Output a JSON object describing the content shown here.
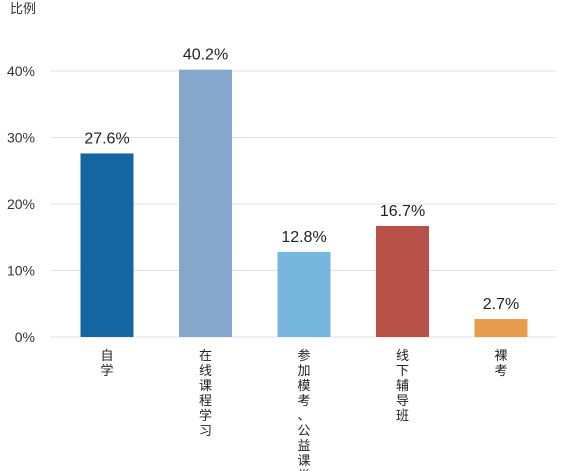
{
  "chart_data": {
    "type": "bar",
    "ylabel": "比例",
    "xlabel": "",
    "categories": [
      "自学",
      "在线课程学习",
      "参加模考、公益课堂",
      "线下辅导班",
      "裸考"
    ],
    "values": [
      27.6,
      40.2,
      12.8,
      16.7,
      2.7
    ],
    "value_labels": [
      "27.6%",
      "40.2%",
      "12.8%",
      "16.7%",
      "2.7%"
    ],
    "ylim": [
      0,
      40
    ],
    "yticks": [
      "0%",
      "10%",
      "20%",
      "30%",
      "40%"
    ],
    "grid": true,
    "colors": [
      "#1565a0",
      "#86a8cc",
      "#77b7de",
      "#b85147",
      "#e89c4e"
    ]
  }
}
